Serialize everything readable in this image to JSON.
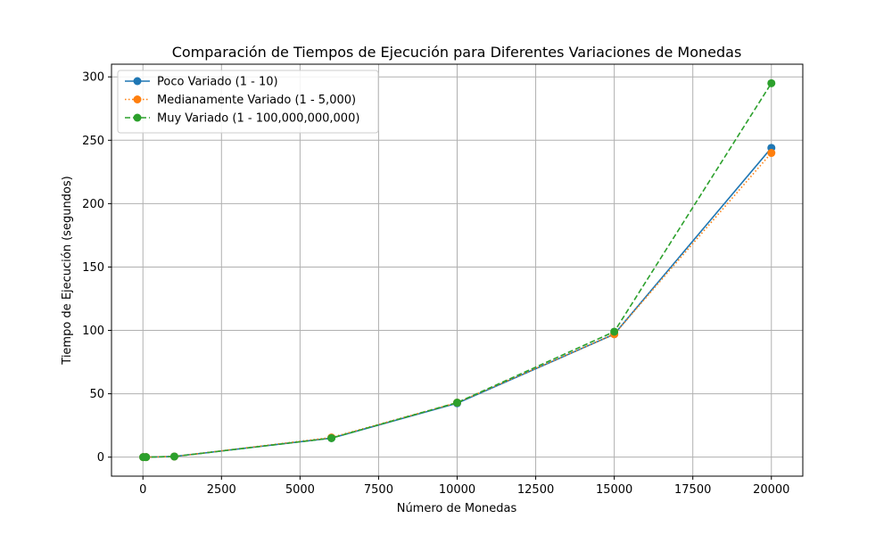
{
  "chart_data": {
    "type": "line",
    "title": "Comparación de Tiempos de Ejecución para Diferentes Variaciones de Monedas",
    "xlabel": "Número de Monedas",
    "ylabel": "Tiempo de Ejecución (segundos)",
    "xlim": [
      -1000,
      21000
    ],
    "ylim": [
      -15,
      310
    ],
    "xticks": [
      0,
      2500,
      5000,
      7500,
      10000,
      12500,
      15000,
      17500,
      20000
    ],
    "yticks": [
      0,
      50,
      100,
      150,
      200,
      250,
      300
    ],
    "grid": true,
    "legend_position": "top-left",
    "x": [
      10,
      100,
      1000,
      6000,
      10000,
      15000,
      20000
    ],
    "series": [
      {
        "name": "Poco Variado (1 - 10)",
        "color": "#1f77b4",
        "line_style": "solid",
        "values": [
          0,
          0,
          0.5,
          15,
          42.5,
          97,
          244
        ]
      },
      {
        "name": "Medianamente Variado (1 - 5,000)",
        "color": "#ff7f0e",
        "line_style": "dotted",
        "values": [
          0,
          0,
          0.5,
          15.5,
          43,
          97,
          240
        ]
      },
      {
        "name": "Muy Variado (1 - 100,000,000,000)",
        "color": "#2ca02c",
        "line_style": "dashed",
        "values": [
          0,
          0,
          0.5,
          15,
          43,
          99,
          295
        ]
      }
    ]
  }
}
